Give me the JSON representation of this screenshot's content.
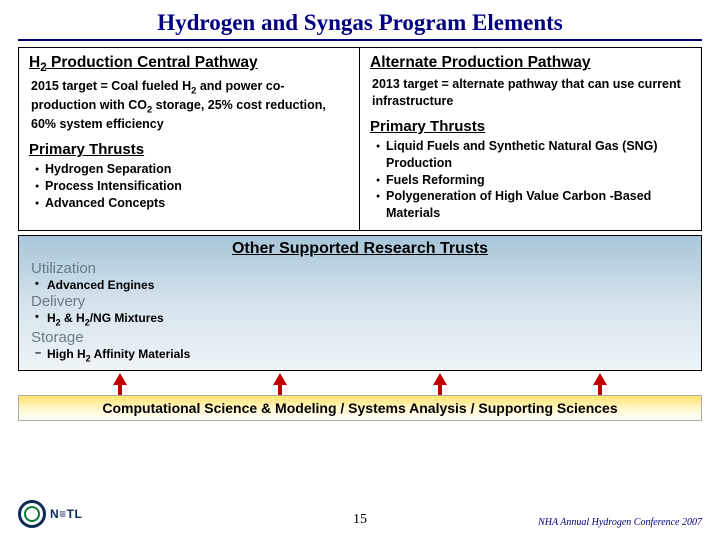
{
  "title": "Hydrogen and Syngas Program Elements",
  "colors": {
    "title_color": "#000080",
    "gradient_blue_top": "#a7c5d9",
    "gradient_blue_bottom": "#eef4f8",
    "gradient_yellow_top": "#ffe36a",
    "gradient_yellow_bottom": "#ffffff",
    "arrow_color": "#c00000",
    "footer_text": "#000080"
  },
  "left": {
    "heading_html": "H<sub>2</sub> Production Central Pathway",
    "target_html": "2015 target = Coal fueled H<sub>2</sub> and power co-production with CO<sub>2</sub> storage, 25% cost reduction, 60% system efficiency",
    "thrusts_heading": "Primary Thrusts",
    "thrusts": [
      "Hydrogen Separation",
      "Process Intensification",
      "Advanced Concepts"
    ]
  },
  "right": {
    "heading_html": "Alternate Production Pathway",
    "target_html": "2013 target = alternate pathway that can use current infrastructure",
    "thrusts_heading": "Primary Thrusts",
    "thrusts": [
      "Liquid Fuels and Synthetic Natural Gas (SNG) Production",
      "Fuels Reforming",
      "Polygeneration of High Value Carbon -Based Materials"
    ]
  },
  "other": {
    "title": "Other Supported Research Trusts",
    "categories": [
      {
        "heading": "Utilization",
        "items_html": [
          "Advanced Engines"
        ],
        "dash": false
      },
      {
        "heading": "Delivery",
        "items_html": [
          "H<sub>2</sub> & H<sub>2</sub>/NG Mixtures"
        ],
        "dash": false
      },
      {
        "heading": "Storage",
        "items_html": [
          "High H<sub>2</sub> Affinity Materials"
        ],
        "dash": true
      }
    ]
  },
  "arrow_count": 4,
  "comp_band": "Computational Science & Modeling / Systems Analysis / Supporting Sciences",
  "footer": {
    "logo_text": "N≡TL",
    "page": "15",
    "right": "NHA Annual Hydrogen Conference 2007"
  }
}
